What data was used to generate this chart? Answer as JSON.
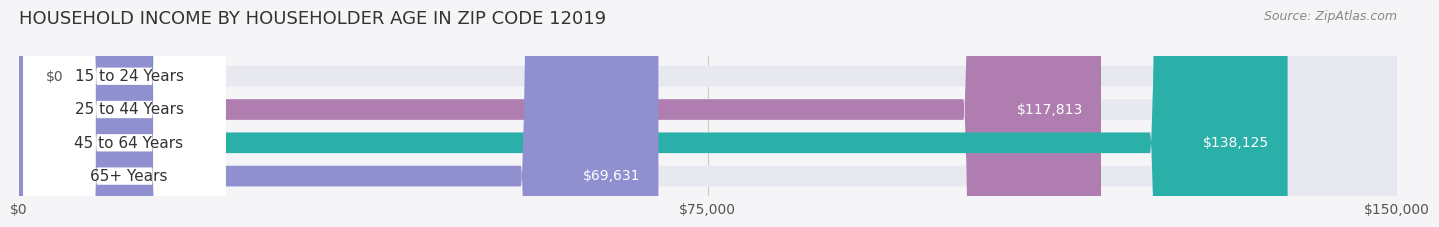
{
  "title": "HOUSEHOLD INCOME BY HOUSEHOLDER AGE IN ZIP CODE 12019",
  "source": "Source: ZipAtlas.com",
  "categories": [
    "15 to 24 Years",
    "25 to 44 Years",
    "45 to 64 Years",
    "65+ Years"
  ],
  "values": [
    0,
    117813,
    138125,
    69631
  ],
  "bar_colors": [
    "#a8b8d8",
    "#b07db0",
    "#2ab0a8",
    "#9090d0"
  ],
  "bar_bg_color": "#e8e8f0",
  "value_labels": [
    "$0",
    "$117,813",
    "$138,125",
    "$69,631"
  ],
  "xlim": [
    0,
    150000
  ],
  "xticks": [
    0,
    75000,
    150000
  ],
  "xtick_labels": [
    "$0",
    "$75,000",
    "$150,000"
  ],
  "title_fontsize": 13,
  "source_fontsize": 9,
  "label_fontsize": 11,
  "value_fontsize": 10,
  "background_color": "#f5f5f8"
}
